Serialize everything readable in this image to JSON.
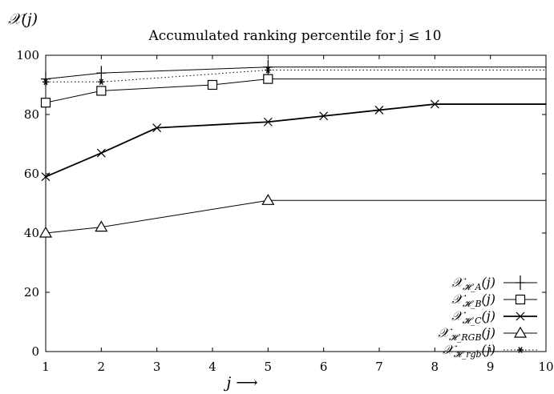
{
  "chart_data": {
    "type": "line",
    "title": "Accumulated ranking percentile for j ≤ 10",
    "ylabel": "𝒳(j)",
    "xlabel": "j ⟶",
    "xlim": [
      1,
      10
    ],
    "ylim": [
      0,
      100
    ],
    "x_ticks": [
      1,
      2,
      3,
      4,
      5,
      6,
      7,
      8,
      9,
      10
    ],
    "y_ticks": [
      0,
      20,
      40,
      60,
      80,
      100
    ],
    "grid": false,
    "legend_position": "bottom-right",
    "series": [
      {
        "name": "𝒳_{𝓗_A}(j)",
        "marker": "plus",
        "line": "solid",
        "x": [
          1,
          2,
          5,
          10
        ],
        "values": [
          92,
          94,
          96,
          96
        ]
      },
      {
        "name": "𝒳_{𝓗_B}(j)",
        "marker": "square",
        "line": "solid",
        "x": [
          1,
          2,
          4,
          5,
          10
        ],
        "values": [
          84,
          88,
          90,
          92,
          92
        ]
      },
      {
        "name": "𝒳_{𝓗_C}(j)",
        "marker": "cross",
        "line": "solid-thick",
        "x": [
          1,
          2,
          3,
          5,
          6,
          7,
          8,
          10
        ],
        "values": [
          59,
          67,
          75.5,
          77.5,
          79.5,
          81.5,
          83.5,
          83.5
        ]
      },
      {
        "name": "𝒳_{𝓗_RGB}(j)",
        "marker": "triangle",
        "line": "solid",
        "x": [
          1,
          2,
          5,
          10
        ],
        "values": [
          40,
          42,
          51,
          51
        ]
      },
      {
        "name": "𝒳_{𝓗_rgb}(j)",
        "marker": "star",
        "line": "dotted",
        "x": [
          1,
          2,
          5,
          10
        ],
        "values": [
          91,
          91,
          95,
          95
        ]
      }
    ]
  }
}
